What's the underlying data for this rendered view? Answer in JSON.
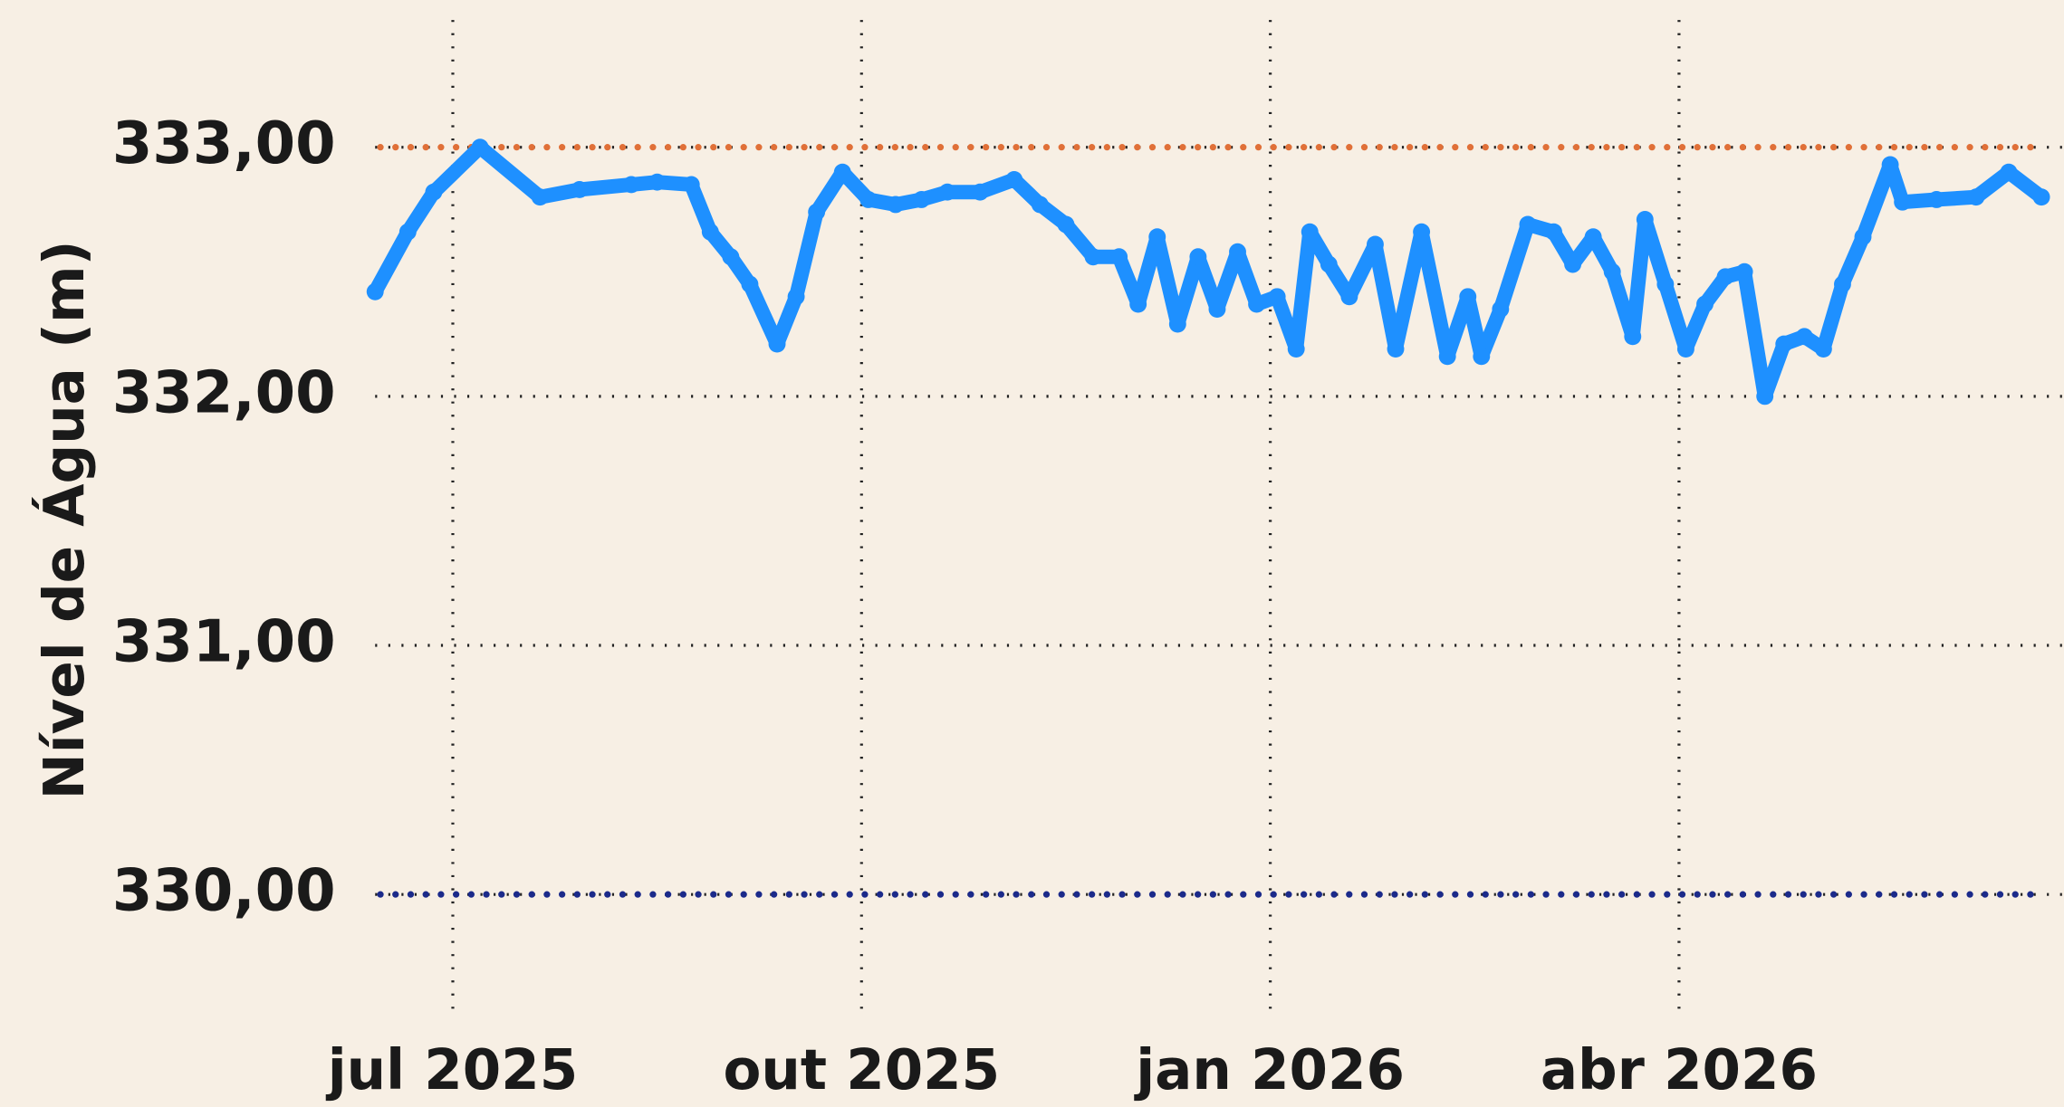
{
  "chart_data": {
    "type": "line",
    "y_label": "Nível de Água (m)",
    "xlim": [
      -0.57,
      11.7
    ],
    "ylim": [
      329.47,
      333.59
    ],
    "xticks": [
      {
        "value": 0,
        "label": "jul 2025"
      },
      {
        "value": 3,
        "label": "out 2025"
      },
      {
        "value": 6,
        "label": "jan 2026"
      },
      {
        "value": 9,
        "label": "abr 2026"
      }
    ],
    "yticks": [
      {
        "value": 330,
        "label": "330,00"
      },
      {
        "value": 331,
        "label": "331,00"
      },
      {
        "value": 332,
        "label": "332,00"
      },
      {
        "value": 333,
        "label": "333,00"
      }
    ],
    "grid": true,
    "reference_lines": [
      {
        "value": 333,
        "color": "#e07038"
      },
      {
        "value": 330,
        "color": "#1b2a8a"
      }
    ],
    "series": [
      {
        "color": "#1e90ff",
        "x": [
          -0.57,
          -0.33,
          -0.14,
          0.2,
          0.64,
          0.93,
          1.31,
          1.5,
          1.75,
          1.89,
          2.04,
          2.18,
          2.38,
          2.52,
          2.67,
          2.86,
          3.05,
          3.25,
          3.44,
          3.63,
          3.87,
          4.12,
          4.31,
          4.5,
          4.7,
          4.89,
          5.03,
          5.17,
          5.32,
          5.47,
          5.61,
          5.76,
          5.9,
          6.05,
          6.19,
          6.29,
          6.43,
          6.58,
          6.77,
          6.92,
          7.11,
          7.3,
          7.45,
          7.55,
          7.69,
          7.89,
          8.08,
          8.22,
          8.37,
          8.51,
          8.66,
          8.75,
          8.9,
          9.05,
          9.19,
          9.34,
          9.48,
          9.63,
          9.77,
          9.92,
          10.06,
          10.2,
          10.35,
          10.55,
          10.64,
          10.89,
          11.18,
          11.42,
          11.66
        ],
        "values": [
          332.42,
          332.66,
          332.82,
          333.0,
          332.8,
          332.83,
          332.85,
          332.86,
          332.85,
          332.66,
          332.56,
          332.45,
          332.21,
          332.4,
          332.74,
          332.9,
          332.79,
          332.77,
          332.79,
          332.82,
          332.82,
          332.87,
          332.77,
          332.69,
          332.56,
          332.56,
          332.37,
          332.64,
          332.29,
          332.56,
          332.35,
          332.58,
          332.37,
          332.4,
          332.19,
          332.66,
          332.53,
          332.4,
          332.61,
          332.19,
          332.66,
          332.16,
          332.4,
          332.16,
          332.35,
          332.69,
          332.66,
          332.53,
          332.64,
          332.5,
          332.24,
          332.71,
          332.45,
          332.19,
          332.37,
          332.48,
          332.5,
          332.0,
          332.21,
          332.24,
          332.19,
          332.45,
          332.64,
          332.93,
          332.78,
          332.79,
          332.8,
          332.9,
          332.8
        ]
      }
    ]
  }
}
